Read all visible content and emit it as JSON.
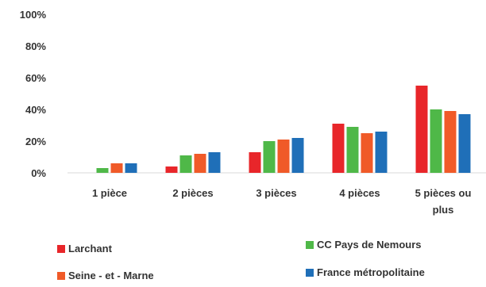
{
  "chart_data": {
    "type": "bar",
    "categories": [
      [
        "1 pièce"
      ],
      [
        "2 pièces"
      ],
      [
        "3 pièces"
      ],
      [
        "4 pièces"
      ],
      [
        "5 pièces ou",
        "plus"
      ]
    ],
    "series": [
      {
        "name": "Larchant",
        "color": "#e8262a",
        "values": [
          0,
          4,
          13,
          31,
          55
        ]
      },
      {
        "name": "CC Pays de Nemours",
        "color": "#4fb848",
        "values": [
          3,
          11,
          20,
          29,
          40
        ]
      },
      {
        "name": "Seine - et - Marne",
        "color": "#f05a28",
        "values": [
          6,
          12,
          21,
          25,
          39
        ]
      },
      {
        "name": "France métropolitaine",
        "color": "#1f6fb8",
        "values": [
          6,
          13,
          22,
          26,
          37
        ]
      }
    ],
    "yticks": [
      "0%",
      "20%",
      "40%",
      "60%",
      "80%",
      "100%"
    ],
    "ylim": [
      0,
      100
    ],
    "grid": false,
    "legend": "bottom"
  }
}
